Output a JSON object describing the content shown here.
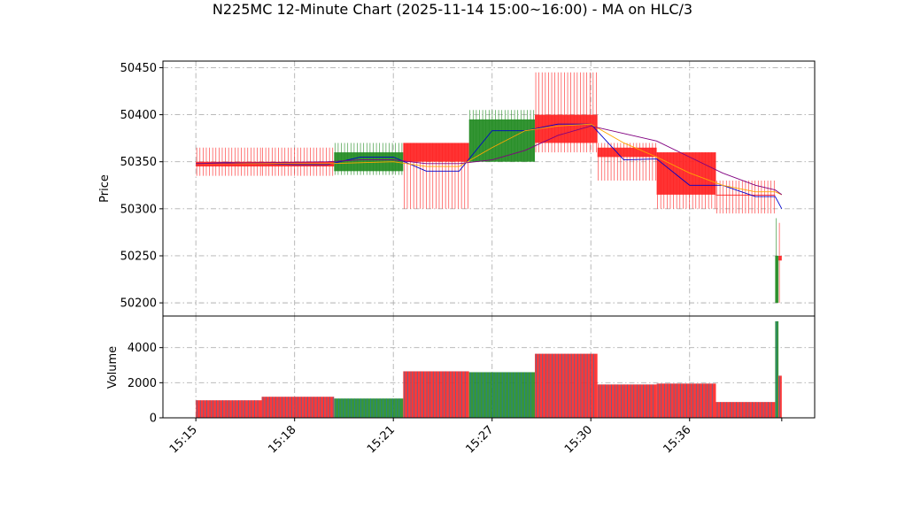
{
  "chart_data": {
    "type": "candlestick",
    "title": "N225MC 12-Minute Chart (2025-11-14 15:00~16:00) - MA on HLC/3",
    "colors": {
      "up": "#228B22",
      "down": "#FF2222",
      "ma_short": "#0000CC",
      "ma_mid": "#FFA500",
      "ma_long": "#800080",
      "volume_body": "#1f77b4"
    },
    "x_tick_labels": [
      "15:15",
      "15:18",
      "15:21",
      "15:27",
      "15:30",
      "15:36"
    ],
    "x_tick_positions": [
      0,
      3,
      6,
      9,
      12,
      15
    ],
    "xlim": [
      -1,
      18.8
    ],
    "price_panel": {
      "ylabel": "Price",
      "ylim": [
        50186,
        50457
      ],
      "yticks": [
        50200,
        50250,
        50300,
        50350,
        50400,
        50450
      ],
      "grid": true,
      "candles": [
        {
          "x0": 0.0,
          "x1": 2.0,
          "open": 50350,
          "close": 50345,
          "high": 50365,
          "low": 50335,
          "dir": "down"
        },
        {
          "x0": 2.0,
          "x1": 4.2,
          "open": 50350,
          "close": 50345,
          "high": 50365,
          "low": 50335,
          "dir": "down"
        },
        {
          "x0": 4.2,
          "x1": 6.3,
          "open": 50340,
          "close": 50360,
          "high": 50370,
          "low": 50336,
          "dir": "up"
        },
        {
          "x0": 6.3,
          "x1": 8.3,
          "open": 50370,
          "close": 50350,
          "high": 50370,
          "low": 50300,
          "dir": "down"
        },
        {
          "x0": 8.3,
          "x1": 10.3,
          "open": 50350,
          "close": 50395,
          "high": 50405,
          "low": 50350,
          "dir": "up"
        },
        {
          "x0": 10.3,
          "x1": 12.2,
          "open": 50400,
          "close": 50370,
          "high": 50445,
          "low": 50360,
          "dir": "down"
        },
        {
          "x0": 12.2,
          "x1": 14.0,
          "open": 50365,
          "close": 50355,
          "high": 50370,
          "low": 50330,
          "dir": "down"
        },
        {
          "x0": 14.0,
          "x1": 15.8,
          "open": 50360,
          "close": 50315,
          "high": 50360,
          "low": 50300,
          "dir": "down"
        },
        {
          "x0": 15.8,
          "x1": 17.6,
          "open": 50315,
          "close": 50315,
          "high": 50330,
          "low": 50295,
          "dir": "down"
        },
        {
          "x0": 17.6,
          "x1": 17.7,
          "open": 50200,
          "close": 50250,
          "high": 50290,
          "low": 50200,
          "dir": "up"
        },
        {
          "x0": 17.7,
          "x1": 17.8,
          "open": 50250,
          "close": 50245,
          "high": 50285,
          "low": 50200,
          "dir": "down"
        }
      ],
      "ma_series": [
        {
          "color_key": "ma_short",
          "x": [
            0,
            1,
            2,
            3,
            4,
            5,
            6,
            7,
            8,
            9,
            10,
            11,
            12,
            13,
            14,
            15,
            16,
            17,
            17.6,
            17.8
          ],
          "y": [
            50348,
            50349,
            50348,
            50347,
            50347,
            50355,
            50355,
            50340,
            50340,
            50383,
            50383,
            50390,
            50390,
            50352,
            50353,
            50325,
            50325,
            50313,
            50313,
            50300
          ]
        },
        {
          "color_key": "ma_mid",
          "x": [
            0,
            2,
            4,
            6,
            7,
            8,
            9,
            10,
            11,
            12,
            13,
            14,
            15,
            16,
            17,
            17.6,
            17.8
          ],
          "y": [
            50348,
            50348,
            50348,
            50350,
            50345,
            50345,
            50365,
            50383,
            50388,
            50390,
            50370,
            50355,
            50338,
            50325,
            50318,
            50318,
            50315
          ]
        },
        {
          "color_key": "ma_long",
          "x": [
            0,
            2,
            4,
            5,
            6,
            7,
            8,
            9,
            10,
            11,
            12,
            13,
            14,
            15,
            16,
            17,
            17.6,
            17.8
          ],
          "y": [
            50348,
            50349,
            50350,
            50352,
            50352,
            50348,
            50348,
            50352,
            50362,
            50378,
            50388,
            50380,
            50372,
            50355,
            50338,
            50325,
            50320,
            50315
          ]
        }
      ]
    },
    "volume_panel": {
      "ylabel": "Volume",
      "ylim": [
        0,
        5800
      ],
      "yticks": [
        0,
        2000,
        4000
      ],
      "yticklabels": [
        "0",
        "2000",
        "4000"
      ],
      "grid": true,
      "bars": [
        {
          "x0": 0.0,
          "x1": 2.0,
          "value": 1000,
          "dir": "down"
        },
        {
          "x0": 2.0,
          "x1": 4.2,
          "value": 1200,
          "dir": "down"
        },
        {
          "x0": 4.2,
          "x1": 6.3,
          "value": 1100,
          "dir": "up"
        },
        {
          "x0": 6.3,
          "x1": 8.3,
          "value": 2650,
          "dir": "down"
        },
        {
          "x0": 8.3,
          "x1": 10.3,
          "value": 2600,
          "dir": "up"
        },
        {
          "x0": 10.3,
          "x1": 12.2,
          "value": 3650,
          "dir": "down"
        },
        {
          "x0": 12.2,
          "x1": 14.0,
          "value": 1900,
          "dir": "down"
        },
        {
          "x0": 14.0,
          "x1": 15.8,
          "value": 1950,
          "dir": "down"
        },
        {
          "x0": 15.8,
          "x1": 17.6,
          "value": 900,
          "dir": "down"
        },
        {
          "x0": 17.6,
          "x1": 17.7,
          "value": 5500,
          "dir": "up"
        },
        {
          "x0": 17.7,
          "x1": 17.8,
          "value": 2400,
          "dir": "down"
        }
      ]
    }
  }
}
